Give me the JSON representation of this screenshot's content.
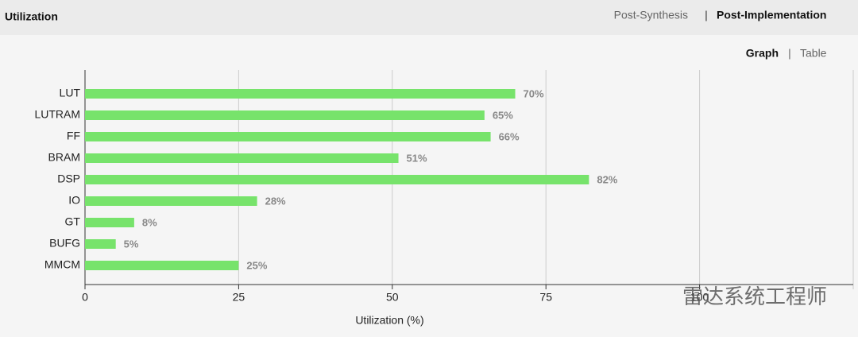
{
  "header": {
    "title": "Utilization",
    "tabs": [
      "Post-Synthesis",
      "Post-Implementation"
    ],
    "active_tab": 1
  },
  "view_tabs": [
    "Graph",
    "Table"
  ],
  "active_view": 0,
  "watermark": "雷达系统工程师",
  "chart_data": {
    "type": "hbar",
    "x_label": "Utilization (%)",
    "categories": [
      "LUT",
      "LUTRAM",
      "FF",
      "BRAM",
      "DSP",
      "IO",
      "GT",
      "BUFG",
      "MMCM"
    ],
    "values": [
      70,
      65,
      66,
      51,
      82,
      28,
      8,
      5,
      25
    ],
    "value_labels": [
      "70%",
      "65%",
      "66%",
      "51%",
      "82%",
      "28%",
      "8%",
      "5%",
      "25%"
    ],
    "color": "#77e36b",
    "xlim": [
      0,
      125
    ],
    "xticks": [
      0,
      25,
      50,
      75,
      100
    ],
    "grid": true
  }
}
